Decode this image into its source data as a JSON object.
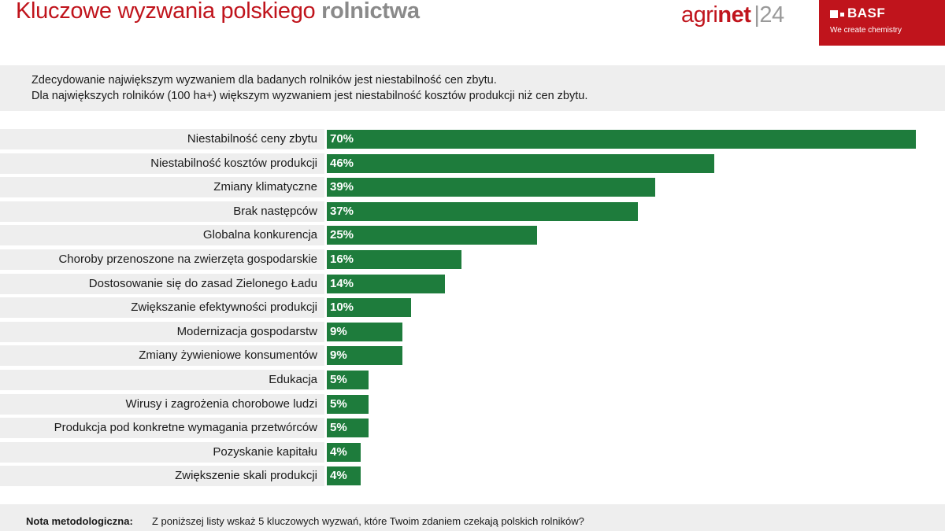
{
  "header": {
    "title_light": "Kluczowe wyzwania polskiego",
    "title_bold": "rolnictwa",
    "brand_agri": "agri",
    "brand_net": "net",
    "brand_sep": "|",
    "brand_num": "24",
    "basf_name": "BASF",
    "basf_tagline": "We create chemistry"
  },
  "subheader": {
    "line1": "Zdecydowanie największym wyzwaniem dla badanych rolników jest niestabilność cen zbytu.",
    "line2": "Dla największych rolników (100 ha+) większym wyzwaniem jest niestabilność kosztów produkcji niż cen zbytu."
  },
  "footer": {
    "label": "Nota metodologiczna:",
    "text": "Z poniższej listy wskaż 5 kluczowych wyzwań, które Twoim zdaniem czekają polskich rolników?"
  },
  "colors": {
    "bar": "#1e7c3c",
    "title": "#c0141c",
    "brand_red": "#c0141c",
    "row_background": "#eeeeee"
  },
  "chart_data": {
    "type": "bar",
    "orientation": "horizontal",
    "unit": "%",
    "xlim": [
      0,
      70
    ],
    "grid": false,
    "categories": [
      "Niestabilność ceny zbytu",
      "Niestabilność kosztów produkcji",
      "Zmiany klimatyczne",
      "Brak następców",
      "Globalna konkurencja",
      "Choroby przenoszone na zwierzęta gospodarskie",
      "Dostosowanie się do zasad Zielonego Ładu",
      "Zwiększanie efektywności produkcji",
      "Modernizacja gospodarstw",
      "Zmiany żywieniowe konsumentów",
      "Edukacja",
      "Wirusy i zagrożenia chorobowe ludzi",
      "Produkcja pod konkretne wymagania przetwórców",
      "Pozyskanie kapitału",
      "Zwiększenie skali produkcji"
    ],
    "values": [
      70,
      46,
      39,
      37,
      25,
      16,
      14,
      10,
      9,
      9,
      5,
      5,
      5,
      4,
      4
    ],
    "value_labels": [
      "70%",
      "46%",
      "39%",
      "37%",
      "25%",
      "16%",
      "14%",
      "10%",
      "9%",
      "9%",
      "5%",
      "5%",
      "5%",
      "4%",
      "4%"
    ]
  }
}
